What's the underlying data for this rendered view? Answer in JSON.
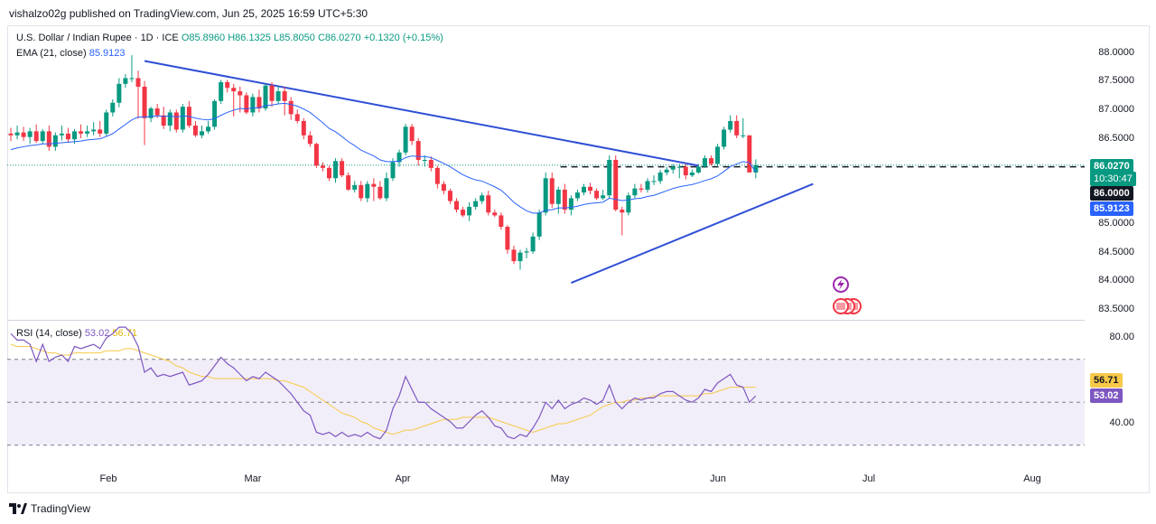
{
  "header": {
    "publisher": "vishalzo02g published on TradingView.com, Jun 25, 2025 16:59 UTC+5:30"
  },
  "legend": {
    "symbol": "U.S. Dollar / Indian Rupee · 1D · ICE",
    "o": "O85.8960",
    "h": "H86.1325",
    "l": "L85.8050",
    "c": "C86.0270",
    "chg": "+0.1320 (+0.15%)",
    "ema_label": "EMA (21, close)",
    "ema_value": "85.9123",
    "rsi_label": "RSI (14, close)",
    "rsi_value": "53.02",
    "rsi_ma_value": "56.71"
  },
  "price_axis": [
    "88.0000",
    "87.5000",
    "87.0000",
    "86.5000",
    "85.0000",
    "84.5000",
    "84.0000",
    "83.5000"
  ],
  "price_tags": {
    "last": "86.0270",
    "countdown": "10:30:47",
    "level": "86.0000",
    "ema": "85.9123"
  },
  "rsi_axis": [
    "80.00",
    "40.00"
  ],
  "rsi_tags": {
    "ma": "56.71",
    "rsi": "53.02"
  },
  "time_axis": [
    "Feb",
    "Mar",
    "Apr",
    "May",
    "Jun",
    "Jul",
    "Aug"
  ],
  "brand": "TradingView",
  "colors": {
    "up": "#089981",
    "down": "#f23645",
    "ema": "#2962ff",
    "rsi": "#7e57c2",
    "rsi_ma": "#f7c948",
    "trend": "#2e4fd6"
  },
  "chart_data": [
    {
      "type": "candlestick",
      "title": "U.S. Dollar / Indian Rupee · 1D · ICE",
      "ylim": [
        83.4,
        88.1
      ],
      "x": [
        "Jan 13",
        "Jan 14",
        "Jan 15",
        "Jan 16",
        "Jan 17",
        "Jan 20",
        "Jan 21",
        "Jan 22",
        "Jan 23",
        "Jan 24",
        "Jan 27",
        "Jan 28",
        "Jan 29",
        "Jan 30",
        "Jan 31",
        "Feb 3",
        "Feb 4",
        "Feb 5",
        "Feb 6",
        "Feb 7",
        "Feb 10",
        "Feb 11",
        "Feb 12",
        "Feb 13",
        "Feb 14",
        "Feb 17",
        "Feb 18",
        "Feb 19",
        "Feb 20",
        "Feb 21",
        "Feb 24",
        "Feb 25",
        "Feb 26",
        "Feb 27",
        "Feb 28",
        "Mar 3",
        "Mar 4",
        "Mar 5",
        "Mar 6",
        "Mar 7",
        "Mar 10",
        "Mar 11",
        "Mar 12",
        "Mar 13",
        "Mar 14",
        "Mar 17",
        "Mar 18",
        "Mar 19",
        "Mar 20",
        "Mar 21",
        "Mar 24",
        "Mar 25",
        "Mar 26",
        "Mar 27",
        "Mar 28",
        "Mar 31",
        "Apr 1",
        "Apr 2",
        "Apr 3",
        "Apr 4",
        "Apr 7",
        "Apr 8",
        "Apr 9",
        "Apr 10",
        "Apr 11",
        "Apr 14",
        "Apr 15",
        "Apr 16",
        "Apr 17",
        "Apr 18",
        "Apr 21",
        "Apr 22",
        "Apr 23",
        "Apr 24",
        "Apr 25",
        "Apr 28",
        "Apr 29",
        "Apr 30",
        "May 1",
        "May 2",
        "May 5",
        "May 6",
        "May 7",
        "May 8",
        "May 9",
        "May 12",
        "May 13",
        "May 14",
        "May 15",
        "May 16",
        "May 19",
        "May 20",
        "May 21",
        "May 22",
        "May 23",
        "May 26",
        "May 27",
        "May 28",
        "May 29",
        "May 30",
        "Jun 2",
        "Jun 3",
        "Jun 4",
        "Jun 5",
        "Jun 6",
        "Jun 9",
        "Jun 10",
        "Jun 11",
        "Jun 12",
        "Jun 13",
        "Jun 16",
        "Jun 17",
        "Jun 18",
        "Jun 19",
        "Jun 20",
        "Jun 23",
        "Jun 24",
        "Jun 25"
      ],
      "series": [
        {
          "name": "OHLC",
          "open": [
            86.58,
            86.55,
            86.6,
            86.52,
            86.62,
            86.45,
            86.62,
            86.35,
            86.55,
            86.58,
            86.48,
            86.62,
            86.58,
            86.62,
            86.65,
            86.58,
            86.95,
            87.12,
            87.45,
            87.55,
            87.55,
            87.4,
            86.85,
            87.02,
            86.9,
            86.72,
            86.95,
            86.65,
            87.05,
            86.72,
            86.55,
            86.62,
            86.7,
            87.15,
            87.48,
            87.38,
            87.32,
            87.25,
            86.95,
            87.22,
            87.02,
            87.42,
            87.15,
            87.32,
            87.15,
            86.92,
            86.8,
            86.55,
            86.4,
            86.02,
            85.98,
            85.8,
            86.1,
            85.85,
            85.6,
            85.68,
            85.45,
            85.7,
            85.65,
            85.45,
            85.8,
            86.08,
            86.25,
            86.7,
            86.45,
            86.12,
            86.12,
            85.98,
            85.7,
            85.58,
            85.4,
            85.25,
            85.15,
            85.3,
            85.4,
            85.5,
            85.2,
            85.15,
            84.95,
            84.55,
            84.35,
            84.5,
            84.52,
            84.78,
            85.2,
            85.8,
            85.35,
            85.6,
            85.25,
            85.45,
            85.55,
            85.65,
            85.58,
            85.45,
            85.5,
            86.12,
            85.25,
            85.2,
            85.5,
            85.62,
            85.6,
            85.75,
            85.75,
            85.9,
            85.95,
            86.0,
            86.0,
            85.85,
            85.9,
            86.0,
            86.15,
            86.05,
            86.35,
            86.65,
            86.8,
            86.55,
            86.55,
            85.9
          ],
          "high": [
            86.68,
            86.72,
            86.7,
            86.68,
            86.74,
            86.66,
            86.72,
            86.6,
            86.72,
            86.68,
            86.66,
            86.74,
            86.72,
            86.78,
            86.8,
            87.0,
            87.18,
            87.55,
            87.62,
            87.95,
            87.68,
            87.5,
            87.05,
            87.1,
            87.05,
            87.0,
            87.0,
            87.1,
            87.15,
            86.8,
            86.72,
            86.8,
            87.18,
            87.52,
            87.52,
            87.45,
            87.4,
            87.3,
            87.28,
            87.35,
            87.45,
            87.48,
            87.42,
            87.4,
            87.22,
            87.0,
            86.85,
            86.62,
            86.42,
            86.08,
            86.02,
            86.15,
            86.15,
            85.9,
            85.75,
            85.75,
            85.75,
            85.8,
            85.75,
            85.9,
            86.15,
            86.3,
            86.75,
            86.75,
            86.5,
            86.2,
            86.18,
            86.02,
            85.75,
            85.62,
            85.45,
            85.3,
            85.38,
            85.45,
            85.55,
            85.58,
            85.25,
            85.2,
            84.98,
            84.62,
            84.55,
            84.58,
            84.85,
            85.25,
            85.9,
            85.9,
            85.65,
            85.7,
            85.5,
            85.6,
            85.7,
            85.72,
            85.62,
            85.6,
            86.2,
            86.2,
            85.3,
            85.55,
            85.7,
            85.7,
            85.8,
            85.85,
            85.95,
            86.0,
            86.05,
            86.05,
            86.05,
            85.95,
            86.05,
            86.2,
            86.2,
            86.4,
            86.7,
            86.9,
            86.9,
            86.85,
            86.55,
            86.13
          ],
          "low": [
            86.45,
            86.48,
            86.45,
            86.4,
            86.42,
            86.4,
            86.28,
            86.28,
            86.46,
            86.42,
            86.4,
            86.5,
            86.52,
            86.55,
            86.52,
            86.54,
            86.88,
            87.04,
            87.38,
            87.48,
            86.84,
            86.38,
            86.78,
            86.85,
            86.66,
            86.62,
            86.6,
            86.6,
            86.68,
            86.52,
            86.5,
            86.58,
            86.65,
            87.1,
            87.3,
            86.88,
            86.95,
            86.92,
            86.88,
            86.95,
            86.98,
            87.05,
            87.1,
            86.9,
            86.82,
            86.76,
            86.48,
            86.35,
            85.98,
            85.92,
            85.75,
            85.72,
            85.82,
            85.58,
            85.55,
            85.4,
            85.38,
            85.4,
            85.42,
            85.4,
            85.75,
            86.0,
            86.2,
            86.38,
            86.02,
            86.0,
            85.92,
            85.62,
            85.52,
            85.35,
            85.2,
            85.12,
            85.05,
            85.25,
            85.35,
            85.15,
            85.12,
            84.9,
            84.48,
            84.3,
            84.2,
            84.4,
            84.48,
            84.72,
            85.15,
            85.28,
            85.18,
            85.18,
            85.15,
            85.4,
            85.5,
            85.52,
            85.42,
            85.42,
            85.45,
            85.22,
            84.8,
            85.15,
            85.45,
            85.55,
            85.55,
            85.68,
            85.7,
            85.85,
            85.88,
            85.8,
            85.78,
            85.82,
            85.88,
            85.98,
            86.02,
            86.0,
            86.3,
            86.6,
            86.5,
            86.5,
            85.9,
            85.8
          ],
          "close": [
            86.55,
            86.6,
            86.52,
            86.62,
            86.45,
            86.62,
            86.35,
            86.55,
            86.58,
            86.48,
            86.62,
            86.58,
            86.62,
            86.65,
            86.58,
            86.95,
            87.12,
            87.45,
            87.55,
            87.55,
            87.4,
            86.85,
            87.02,
            86.9,
            86.72,
            86.95,
            86.65,
            87.05,
            86.72,
            86.55,
            86.62,
            86.7,
            87.15,
            87.48,
            87.38,
            87.32,
            87.25,
            86.95,
            87.22,
            87.02,
            87.42,
            87.15,
            87.32,
            87.15,
            86.92,
            86.8,
            86.55,
            86.4,
            86.02,
            85.98,
            85.8,
            86.1,
            85.85,
            85.6,
            85.68,
            85.45,
            85.7,
            85.65,
            85.45,
            85.8,
            86.08,
            86.25,
            86.7,
            86.45,
            86.12,
            86.12,
            85.98,
            85.7,
            85.58,
            85.4,
            85.25,
            85.15,
            85.3,
            85.4,
            85.5,
            85.2,
            85.15,
            84.95,
            84.55,
            84.35,
            84.5,
            84.52,
            84.78,
            85.2,
            85.8,
            85.35,
            85.6,
            85.25,
            85.45,
            85.55,
            85.65,
            85.58,
            85.45,
            85.5,
            86.12,
            85.25,
            85.2,
            85.5,
            85.62,
            85.6,
            85.75,
            85.75,
            85.9,
            85.95,
            86.0,
            86.0,
            85.85,
            85.9,
            86.0,
            86.15,
            86.05,
            86.35,
            86.65,
            86.8,
            86.55,
            86.55,
            85.9,
            86.03
          ]
        },
        {
          "name": "EMA (21, close)",
          "values": [
            86.3,
            86.33,
            86.35,
            86.37,
            86.38,
            86.4,
            86.4,
            86.41,
            86.42,
            86.43,
            86.44,
            86.45,
            86.47,
            86.48,
            86.49,
            86.53,
            86.58,
            86.66,
            86.74,
            86.82,
            86.87,
            86.87,
            86.88,
            86.89,
            86.88,
            86.89,
            86.87,
            86.89,
            86.88,
            86.85,
            86.83,
            86.82,
            86.84,
            86.9,
            86.95,
            86.99,
            87.02,
            87.01,
            87.03,
            87.03,
            87.07,
            87.08,
            87.1,
            87.11,
            87.09,
            87.06,
            87.01,
            86.95,
            86.86,
            86.77,
            86.67,
            86.61,
            86.53,
            86.44,
            86.37,
            86.29,
            86.24,
            86.19,
            86.12,
            86.09,
            86.09,
            86.1,
            86.16,
            86.19,
            86.18,
            86.18,
            86.16,
            86.11,
            86.06,
            86.0,
            85.93,
            85.86,
            85.81,
            85.77,
            85.75,
            85.7,
            85.65,
            85.59,
            85.49,
            85.38,
            85.3,
            85.23,
            85.19,
            85.19,
            85.24,
            85.25,
            85.28,
            85.28,
            85.29,
            85.31,
            85.34,
            85.36,
            85.37,
            85.38,
            85.45,
            85.43,
            85.41,
            85.42,
            85.44,
            85.45,
            85.48,
            85.5,
            85.54,
            85.58,
            85.62,
            85.65,
            85.67,
            85.69,
            85.72,
            85.76,
            85.79,
            85.84,
            85.92,
            86.0,
            86.05,
            86.09,
            86.07,
            85.91
          ]
        }
      ]
    },
    {
      "type": "line",
      "title": "RSI (14, close)",
      "ylim": [
        20,
        90
      ],
      "series": [
        {
          "name": "RSI (14, close)",
          "values": [
            82,
            79,
            79,
            77,
            69,
            77,
            69,
            71,
            72,
            69,
            76,
            75,
            76,
            77,
            75,
            80,
            82,
            85,
            85,
            82,
            76,
            64,
            66,
            62,
            63,
            62,
            63,
            64,
            58,
            59,
            60,
            63,
            67,
            71,
            68,
            66,
            63,
            60,
            62,
            61,
            64,
            62,
            60,
            57,
            54,
            50,
            46,
            44,
            36,
            35,
            36,
            34,
            36,
            34,
            35,
            34,
            36,
            34,
            33,
            37,
            47,
            53,
            62,
            56,
            50,
            50,
            47,
            45,
            43,
            41,
            38,
            38,
            41,
            44,
            46,
            43,
            39,
            38,
            34,
            33,
            35,
            34,
            38,
            43,
            50,
            47,
            51,
            47,
            49,
            50,
            52,
            51,
            49,
            51,
            58,
            50,
            47,
            50,
            52,
            51,
            52,
            52,
            54,
            55,
            55,
            53,
            51,
            50,
            52,
            56,
            55,
            59,
            61,
            63,
            58,
            57,
            50,
            53
          ]
        },
        {
          "name": "RSI MA",
          "values": [
            77,
            76,
            76,
            76,
            75,
            74,
            73,
            73,
            72,
            72,
            73,
            73,
            73,
            73,
            73,
            74,
            74,
            74,
            75,
            75,
            74,
            73,
            72,
            71,
            70,
            69,
            67,
            66,
            64,
            63,
            62,
            62,
            61,
            61,
            61,
            61,
            61,
            61,
            61,
            61,
            61,
            61,
            60,
            60,
            59,
            58,
            57,
            55,
            53,
            51,
            49,
            47,
            45,
            44,
            43,
            41,
            40,
            38,
            37,
            36,
            35,
            36,
            37,
            37,
            38,
            39,
            40,
            41,
            42,
            42,
            42,
            43,
            43,
            43,
            43,
            43,
            42,
            41,
            40,
            39,
            38,
            37,
            36,
            37,
            38,
            39,
            40,
            40,
            41,
            42,
            43,
            44,
            46,
            48,
            49,
            50,
            50,
            51,
            51,
            52,
            52,
            53,
            53,
            53,
            53,
            53,
            53,
            53,
            53,
            54,
            54,
            55,
            56,
            57,
            57,
            57,
            57,
            57
          ]
        }
      ]
    }
  ]
}
